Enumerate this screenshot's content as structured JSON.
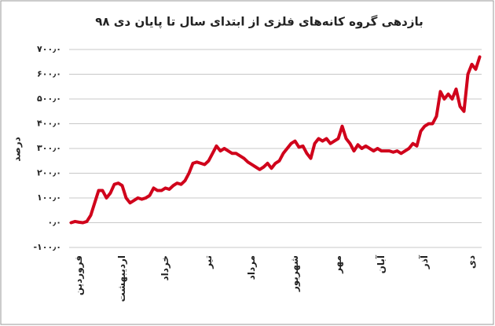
{
  "chart_data": {
    "type": "line",
    "title": "بازدهی گروه کانه‌های فلزی از ابتدای سال تا پایان دی ۹۸",
    "y_label": "درصد",
    "x": [
      0,
      1,
      2,
      3,
      4,
      5,
      6,
      7,
      8,
      9,
      10,
      11,
      12,
      13,
      14,
      15,
      16,
      17,
      18,
      19,
      20,
      21,
      22,
      23,
      24,
      25,
      26,
      27,
      28,
      29,
      30,
      31,
      32,
      33,
      34,
      35,
      36,
      37,
      38,
      39,
      40,
      41,
      42,
      43,
      44,
      45,
      46,
      47,
      48,
      49,
      50,
      51,
      52,
      53,
      54,
      55,
      56,
      57,
      58,
      59,
      60,
      61,
      62,
      63,
      64,
      65,
      66,
      67,
      68,
      69,
      70,
      71,
      72,
      73,
      74,
      75,
      76,
      77,
      78,
      79,
      80,
      81,
      82,
      83,
      84,
      85,
      86,
      87,
      88,
      89,
      90,
      91,
      92,
      93,
      94,
      95,
      96,
      97,
      98,
      99,
      100,
      101,
      102,
      103,
      104
    ],
    "series": [
      {
        "color": "#d0021b",
        "values": [
          0,
          5,
          2,
          0,
          5,
          30,
          80,
          130,
          130,
          100,
          120,
          155,
          160,
          150,
          100,
          80,
          90,
          100,
          95,
          100,
          110,
          140,
          130,
          130,
          140,
          135,
          150,
          160,
          155,
          170,
          200,
          240,
          245,
          240,
          235,
          250,
          280,
          310,
          290,
          300,
          290,
          280,
          280,
          270,
          260,
          245,
          235,
          225,
          215,
          225,
          240,
          220,
          240,
          250,
          280,
          300,
          320,
          330,
          305,
          310,
          280,
          260,
          320,
          340,
          330,
          340,
          320,
          330,
          340,
          390,
          340,
          320,
          290,
          315,
          300,
          310,
          300,
          290,
          300,
          290,
          290,
          290,
          285,
          290,
          280,
          290,
          300,
          320,
          310,
          370,
          390,
          400,
          400,
          430,
          530,
          500,
          520,
          500,
          540,
          470,
          450,
          600,
          640,
          620,
          670
        ]
      }
    ],
    "xlim": [
      -0.5,
      104.5
    ],
    "xticks": [
      {
        "value": 2,
        "label": "فروردین"
      },
      {
        "value": 13,
        "label": "اردیبهشت"
      },
      {
        "value": 24,
        "label": "خرداد"
      },
      {
        "value": 35,
        "label": "تیر"
      },
      {
        "value": 46,
        "label": "مرداد"
      },
      {
        "value": 57,
        "label": "شهریور"
      },
      {
        "value": 68,
        "label": "مهر"
      },
      {
        "value": 79,
        "label": "آبان"
      },
      {
        "value": 90,
        "label": "آذر"
      },
      {
        "value": 102,
        "label": "دی"
      }
    ],
    "ylim": [
      -100,
      700
    ],
    "yticks": [
      {
        "value": -100,
        "label": "-۱۰۰٫۰"
      },
      {
        "value": 0,
        "label": "۰٫۰"
      },
      {
        "value": 100,
        "label": "۱۰۰٫۰"
      },
      {
        "value": 200,
        "label": "۲۰۰٫۰"
      },
      {
        "value": 300,
        "label": "۳۰۰٫۰"
      },
      {
        "value": 400,
        "label": "۴۰۰٫۰"
      },
      {
        "value": 500,
        "label": "۵۰۰٫۰"
      },
      {
        "value": 600,
        "label": "۶۰۰٫۰"
      },
      {
        "value": 700,
        "label": "۷۰۰٫۰"
      }
    ],
    "grid": true
  }
}
